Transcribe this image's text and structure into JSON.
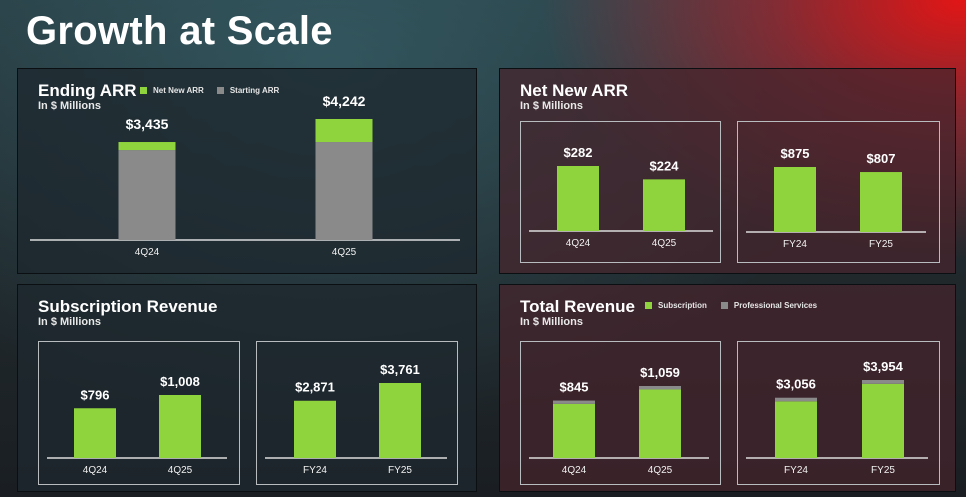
{
  "title": "Growth at Scale",
  "colors": {
    "green": "#8fd43c",
    "gray": "#8a8a8a",
    "axis": "#dcdcdc"
  },
  "ending_arr": {
    "heading": "Ending ARR",
    "unit": "In $ Millions",
    "legend": {
      "net": "Net New ARR",
      "start": "Starting ARR"
    }
  },
  "net_new_arr": {
    "heading": "Net New ARR",
    "unit": "In $ Millions"
  },
  "subscription_revenue": {
    "heading": "Subscription Revenue",
    "unit": "In $ Millions"
  },
  "total_revenue": {
    "heading": "Total Revenue",
    "unit": "In $ Millions",
    "legend": {
      "sub": "Subscription",
      "ps": "Professional Services"
    }
  },
  "chart_data": [
    {
      "id": "ending-arr",
      "type": "bar",
      "stacked": true,
      "title": "Ending ARR",
      "categories": [
        "4Q24",
        "4Q25"
      ],
      "series": [
        {
          "name": "Starting ARR",
          "values": [
            3153,
            3435
          ]
        },
        {
          "name": "Net New ARR",
          "values": [
            282,
            807
          ]
        }
      ],
      "labels": [
        "$3,435",
        "$4,242"
      ],
      "ylim": [
        0,
        4242
      ]
    },
    {
      "id": "net-new-arr-quarter",
      "type": "bar",
      "categories": [
        "4Q24",
        "4Q25"
      ],
      "values": [
        282,
        224
      ],
      "labels": [
        "$282",
        "$224"
      ],
      "ylim": [
        0,
        282
      ]
    },
    {
      "id": "net-new-arr-year",
      "type": "bar",
      "categories": [
        "FY24",
        "FY25"
      ],
      "values": [
        875,
        807
      ],
      "labels": [
        "$875",
        "$807"
      ],
      "ylim": [
        0,
        875
      ]
    },
    {
      "id": "subscription-revenue-quarter",
      "type": "bar",
      "categories": [
        "4Q24",
        "4Q25"
      ],
      "values": [
        796,
        1008
      ],
      "labels": [
        "$796",
        "$1,008"
      ],
      "ylim": [
        0,
        1008
      ]
    },
    {
      "id": "subscription-revenue-year",
      "type": "bar",
      "categories": [
        "FY24",
        "FY25"
      ],
      "values": [
        2871,
        3761
      ],
      "labels": [
        "$2,871",
        "$3,761"
      ],
      "ylim": [
        0,
        3761
      ]
    },
    {
      "id": "total-revenue-quarter",
      "type": "bar",
      "stacked": true,
      "categories": [
        "4Q24",
        "4Q25"
      ],
      "series": [
        {
          "name": "Subscription",
          "values": [
            796,
            1008
          ]
        },
        {
          "name": "Professional Services",
          "values": [
            49,
            51
          ]
        }
      ],
      "labels": [
        "$845",
        "$1,059"
      ],
      "ylim": [
        0,
        1059
      ]
    },
    {
      "id": "total-revenue-year",
      "type": "bar",
      "stacked": true,
      "categories": [
        "FY24",
        "FY25"
      ],
      "series": [
        {
          "name": "Subscription",
          "values": [
            2871,
            3761
          ]
        },
        {
          "name": "Professional Services",
          "values": [
            185,
            193
          ]
        }
      ],
      "labels": [
        "$3,056",
        "$3,954"
      ],
      "ylim": [
        0,
        3954
      ]
    }
  ]
}
